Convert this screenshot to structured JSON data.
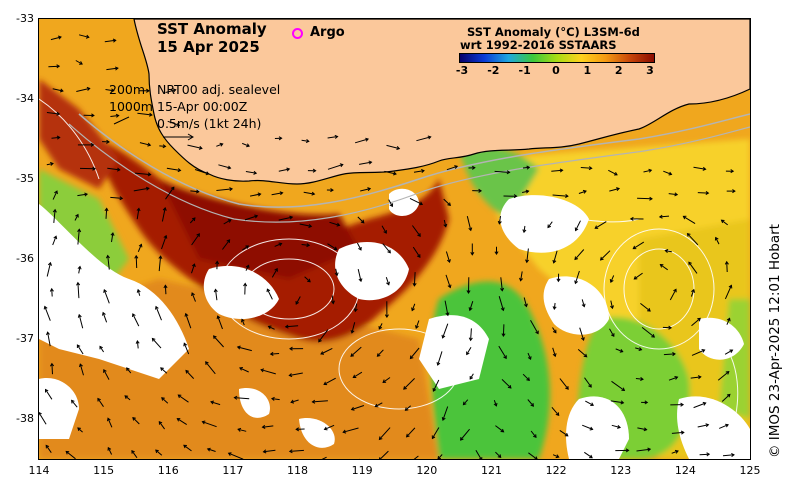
{
  "title": {
    "line1": "SST Anomaly",
    "line2": "15 Apr 2025"
  },
  "legend_argo": "Argo",
  "contour_info": {
    "depth1": "200m",
    "depth2": "1000m",
    "model": "NRT00 adj. sealevel",
    "time": "15-Apr 00:00Z",
    "scale": "0.5m/s (1kt 24h)"
  },
  "colorbar": {
    "title_line1": "SST Anomaly (°C) L3SM-6d",
    "title_line2": "wrt 1992-2016 SSTAARS",
    "ticks": [
      "-3",
      "-2",
      "-1",
      "0",
      "1",
      "2",
      "3"
    ],
    "colors": [
      "#08006b",
      "#0a3bd6",
      "#1fa7e0",
      "#3cc83c",
      "#a8dc14",
      "#ffd21e",
      "#f59a12",
      "#c8470a",
      "#8a0c00"
    ]
  },
  "credit": "© IMOS 23-Apr-2025 12:01 Hobart",
  "axes": {
    "x_ticks": [
      "114",
      "115",
      "116",
      "117",
      "118",
      "119",
      "120",
      "121",
      "122",
      "123",
      "124",
      "125"
    ],
    "y_ticks": [
      "-33",
      "-34",
      "-35",
      "-36",
      "-37",
      "-38"
    ],
    "x_range": [
      114,
      125
    ],
    "y_range": [
      -38.5,
      -33
    ]
  },
  "colors": {
    "land": "#fbc89b",
    "coastline": "#000000",
    "no_data": "#ffffff",
    "isobath": "#b4b4b4",
    "argo": "#ff00ff"
  }
}
